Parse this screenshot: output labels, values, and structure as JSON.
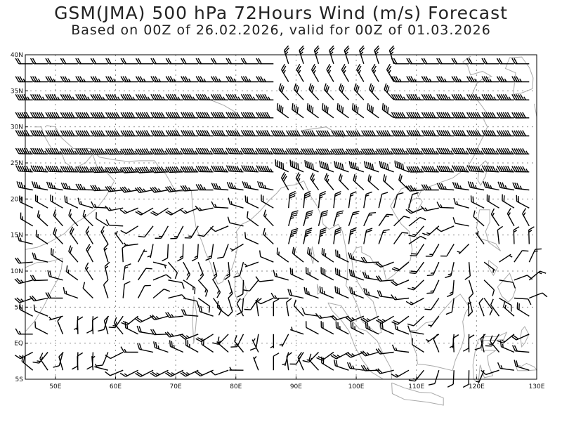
{
  "title": "GSM(JMA) 500 hPa 72Hours Wind (m/s) Forecast",
  "subtitle": "Based on 00Z of 26.02.2026, valid for 00Z of 01.03.2026",
  "map": {
    "projection": "equirectangular",
    "lon_range": [
      45,
      130
    ],
    "lat_range": [
      -5,
      40
    ],
    "grid": true,
    "lat_ticks": [
      {
        "lat": 40,
        "label": "40N"
      },
      {
        "lat": 35,
        "label": "35N"
      },
      {
        "lat": 30,
        "label": "30N"
      },
      {
        "lat": 25,
        "label": "25N"
      },
      {
        "lat": 20,
        "label": "20N"
      },
      {
        "lat": 15,
        "label": "15N"
      },
      {
        "lat": 10,
        "label": "10N"
      },
      {
        "lat": 5,
        "label": "5N"
      },
      {
        "lat": 0,
        "label": "EQ"
      },
      {
        "lat": -5,
        "label": "5S"
      }
    ],
    "lon_ticks": [
      {
        "lon": 50,
        "label": "50E"
      },
      {
        "lon": 60,
        "label": "60E"
      },
      {
        "lon": 70,
        "label": "70E"
      },
      {
        "lon": 80,
        "label": "80E"
      },
      {
        "lon": 90,
        "label": "90E"
      },
      {
        "lon": 100,
        "label": "100E"
      },
      {
        "lon": 110,
        "label": "110E"
      },
      {
        "lon": 120,
        "label": "120E"
      },
      {
        "lon": 130,
        "label": "130E"
      }
    ],
    "coastline_color": "#aaaaaa",
    "barb_color": "#000000",
    "barb_spacing_deg": 2.5
  }
}
